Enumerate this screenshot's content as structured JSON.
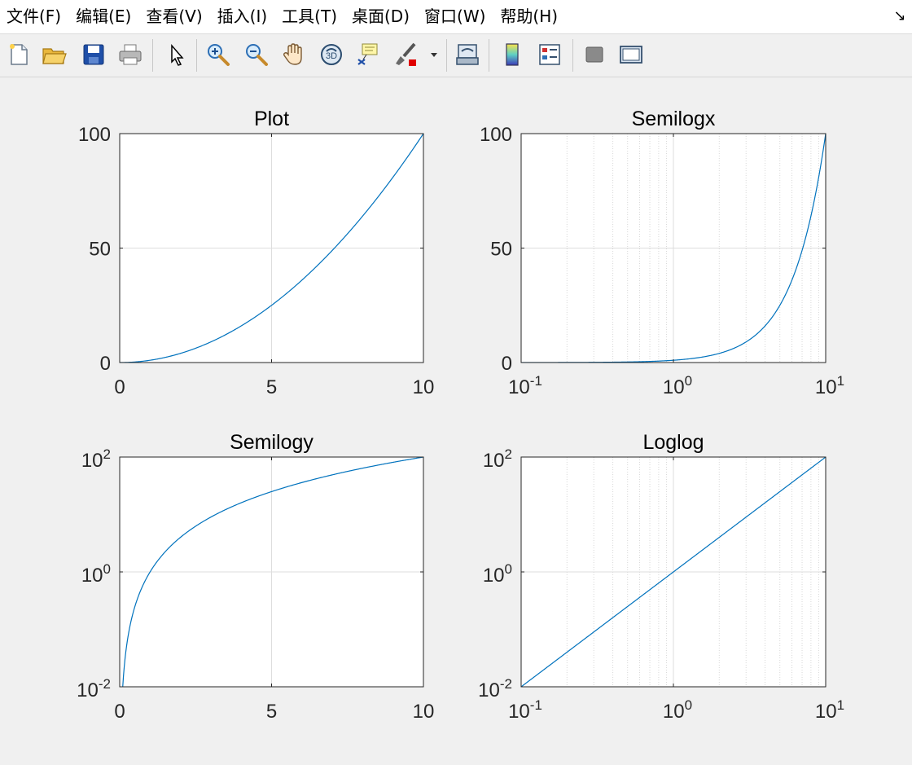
{
  "menu": [
    {
      "label": "文件(F)"
    },
    {
      "label": "编辑(E)"
    },
    {
      "label": "查看(V)"
    },
    {
      "label": "插入(I)"
    },
    {
      "label": "工具(T)"
    },
    {
      "label": "桌面(D)"
    },
    {
      "label": "窗口(W)"
    },
    {
      "label": "帮助(H)"
    }
  ],
  "menu_arrow": "↘",
  "toolbar": [
    {
      "icon": "new-figure-icon"
    },
    {
      "icon": "open-file-icon"
    },
    {
      "icon": "save-icon"
    },
    {
      "icon": "print-icon"
    },
    {
      "icon": "edit-plot-arrow-icon"
    },
    {
      "icon": "zoom-in-icon"
    },
    {
      "icon": "zoom-out-icon"
    },
    {
      "icon": "pan-hand-icon"
    },
    {
      "icon": "rotate-3d-icon"
    },
    {
      "icon": "data-cursor-icon"
    },
    {
      "icon": "brush-icon"
    },
    {
      "icon": "brush-dropdown-icon"
    },
    {
      "icon": "link-plot-icon"
    },
    {
      "icon": "colorbar-icon"
    },
    {
      "icon": "legend-icon"
    },
    {
      "icon": "hide-plot-tools-icon"
    },
    {
      "icon": "show-plot-tools-icon"
    }
  ],
  "colors": {
    "line": "#0072bd",
    "grid": "#dedede",
    "axes": "#262626",
    "background": "#f0f0f0"
  },
  "chart_data": [
    {
      "type": "line",
      "title": "Plot",
      "xscale": "linear",
      "yscale": "linear",
      "xlim": [
        0,
        10
      ],
      "ylim": [
        0,
        100
      ],
      "xticks": [
        {
          "v": 0,
          "label": "0"
        },
        {
          "v": 5,
          "label": "5"
        },
        {
          "v": 10,
          "label": "10"
        }
      ],
      "yticks": [
        {
          "v": 0,
          "label": "0"
        },
        {
          "v": 50,
          "label": "50"
        },
        {
          "v": 100,
          "label": "100"
        }
      ],
      "grid": true,
      "series": [
        {
          "function": "y = x^2",
          "x_range": [
            0,
            10
          ]
        }
      ]
    },
    {
      "type": "line",
      "title": "Semilogx",
      "xscale": "log",
      "yscale": "linear",
      "xlim": [
        0.1,
        10
      ],
      "ylim": [
        0,
        100
      ],
      "xticks": [
        {
          "v": 0.1,
          "base": "10",
          "exp": "-1"
        },
        {
          "v": 1,
          "base": "10",
          "exp": "0"
        },
        {
          "v": 10,
          "base": "10",
          "exp": "1"
        }
      ],
      "yticks": [
        {
          "v": 0,
          "label": "0"
        },
        {
          "v": 50,
          "label": "50"
        },
        {
          "v": 100,
          "label": "100"
        }
      ],
      "grid": true,
      "minor_grid": true,
      "series": [
        {
          "function": "y = x^2",
          "x_range": [
            0.1,
            10
          ]
        }
      ]
    },
    {
      "type": "line",
      "title": "Semilogy",
      "xscale": "linear",
      "yscale": "log",
      "xlim": [
        0,
        10
      ],
      "ylim": [
        0.01,
        100
      ],
      "xticks": [
        {
          "v": 0,
          "label": "0"
        },
        {
          "v": 5,
          "label": "5"
        },
        {
          "v": 10,
          "label": "10"
        }
      ],
      "yticks": [
        {
          "v": 0.01,
          "base": "10",
          "exp": "-2"
        },
        {
          "v": 1,
          "base": "10",
          "exp": "0"
        },
        {
          "v": 100,
          "base": "10",
          "exp": "2"
        }
      ],
      "grid": true,
      "series": [
        {
          "function": "y = x^2",
          "x_range": [
            0.1,
            10
          ]
        }
      ]
    },
    {
      "type": "line",
      "title": "Loglog",
      "xscale": "log",
      "yscale": "log",
      "xlim": [
        0.1,
        10
      ],
      "ylim": [
        0.01,
        100
      ],
      "xticks": [
        {
          "v": 0.1,
          "base": "10",
          "exp": "-1"
        },
        {
          "v": 1,
          "base": "10",
          "exp": "0"
        },
        {
          "v": 10,
          "base": "10",
          "exp": "1"
        }
      ],
      "yticks": [
        {
          "v": 0.01,
          "base": "10",
          "exp": "-2"
        },
        {
          "v": 1,
          "base": "10",
          "exp": "0"
        },
        {
          "v": 100,
          "base": "10",
          "exp": "2"
        }
      ],
      "grid": true,
      "minor_grid": true,
      "series": [
        {
          "function": "y = x^2",
          "x_range": [
            0.1,
            10
          ]
        }
      ]
    }
  ]
}
